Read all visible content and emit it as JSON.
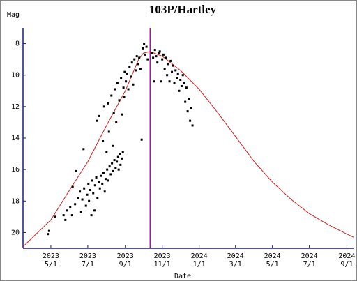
{
  "chart_data": {
    "type": "scatter",
    "title": "103P/Hartley",
    "y_label": "Mag",
    "x_label": "Date",
    "axis_color": "#1a1a8c",
    "xlim": [
      "2023-03-16",
      "2024-09-12"
    ],
    "ylim": [
      21,
      7
    ],
    "yticks": [
      8,
      10,
      12,
      14,
      16,
      18,
      20
    ],
    "xticks": [
      {
        "value": "2023-05-01",
        "label": "2023 5/1"
      },
      {
        "value": "2023-07-01",
        "label": "2023 7/1"
      },
      {
        "value": "2023-09-01",
        "label": "2023 9/1"
      },
      {
        "value": "2023-11-01",
        "label": "2023 11/1"
      },
      {
        "value": "2024-01-01",
        "label": "2024 1/1"
      },
      {
        "value": "2024-03-01",
        "label": "2024 3/1"
      },
      {
        "value": "2024-05-01",
        "label": "2024 5/1"
      },
      {
        "value": "2024-07-01",
        "label": "2024 7/1"
      },
      {
        "value": "2024-09-01",
        "label": "2024 9/1"
      }
    ],
    "vlines": [
      {
        "x": "2023-10-12",
        "color": "#c000c0"
      }
    ],
    "series": [
      {
        "mark": "line",
        "color": "#d02020",
        "x": [
          "2023-03-16",
          "2023-05-01",
          "2023-06-01",
          "2023-07-01",
          "2023-08-01",
          "2023-09-01",
          "2023-09-23",
          "2023-10-01",
          "2023-10-12",
          "2023-11-01",
          "2023-12-01",
          "2024-01-01",
          "2024-02-01",
          "2024-03-01",
          "2024-04-01",
          "2024-05-01",
          "2024-06-01",
          "2024-07-01",
          "2024-08-01",
          "2024-09-01",
          "2024-09-12"
        ],
        "values": [
          20.9,
          19.2,
          17.3,
          15.5,
          13.2,
          11.0,
          9.0,
          8.6,
          8.5,
          8.8,
          9.7,
          10.9,
          12.4,
          13.9,
          15.5,
          16.8,
          17.9,
          18.8,
          19.5,
          20.1,
          20.3
        ]
      },
      {
        "mark": "dot",
        "color": "#000000",
        "x": [
          "2023-04-26",
          "2023-04-28",
          "2023-05-08",
          "2023-05-22",
          "2023-05-25",
          "2023-05-28",
          "2023-06-02",
          "2023-06-05",
          "2023-06-06",
          "2023-06-10",
          "2023-06-12",
          "2023-06-15",
          "2023-06-18",
          "2023-06-20",
          "2023-06-22",
          "2023-06-24",
          "2023-06-25",
          "2023-06-28",
          "2023-06-30",
          "2023-07-02",
          "2023-07-03",
          "2023-07-05",
          "2023-07-07",
          "2023-07-08",
          "2023-07-10",
          "2023-07-12",
          "2023-07-13",
          "2023-07-15",
          "2023-07-16",
          "2023-07-17",
          "2023-07-19",
          "2023-07-20",
          "2023-07-21",
          "2023-07-23",
          "2023-07-25",
          "2023-07-26",
          "2023-07-27",
          "2023-07-28",
          "2023-07-29",
          "2023-07-31",
          "2023-08-01",
          "2023-08-02",
          "2023-08-03",
          "2023-08-04",
          "2023-08-05",
          "2023-08-06",
          "2023-08-08",
          "2023-08-09",
          "2023-08-10",
          "2023-08-11",
          "2023-08-12",
          "2023-08-13",
          "2023-08-14",
          "2023-08-15",
          "2023-08-16",
          "2023-08-17",
          "2023-08-18",
          "2023-08-19",
          "2023-08-20",
          "2023-08-21",
          "2023-08-22",
          "2023-08-23",
          "2023-08-24",
          "2023-08-25",
          "2023-08-26",
          "2023-08-27",
          "2023-08-28",
          "2023-08-29",
          "2023-08-30",
          "2023-08-31",
          "2023-09-02",
          "2023-09-04",
          "2023-09-06",
          "2023-09-08",
          "2023-09-10",
          "2023-09-12",
          "2023-09-14",
          "2023-09-16",
          "2023-09-18",
          "2023-09-20",
          "2023-09-22",
          "2023-09-24",
          "2023-09-26",
          "2023-09-28",
          "2023-09-30",
          "2023-10-02",
          "2023-10-04",
          "2023-10-06",
          "2023-10-08",
          "2023-10-15",
          "2023-10-17",
          "2023-10-19",
          "2023-10-20",
          "2023-10-22",
          "2023-10-24",
          "2023-10-26",
          "2023-10-28",
          "2023-10-30",
          "2023-11-01",
          "2023-11-03",
          "2023-11-05",
          "2023-11-07",
          "2023-11-09",
          "2023-11-11",
          "2023-11-13",
          "2023-11-15",
          "2023-11-17",
          "2023-11-19",
          "2023-11-21",
          "2023-11-23",
          "2023-11-25",
          "2023-11-27",
          "2023-11-29",
          "2023-12-01",
          "2023-12-03",
          "2023-12-05",
          "2023-12-07",
          "2023-12-09",
          "2023-12-11",
          "2023-12-13",
          "2023-12-15",
          "2023-12-17",
          "2023-12-19",
          "2023-12-21"
        ],
        "values": [
          20.1,
          19.9,
          19.0,
          18.9,
          19.2,
          18.6,
          18.4,
          18.9,
          17.1,
          18.2,
          16.1,
          17.8,
          17.4,
          18.7,
          17.9,
          14.7,
          17.2,
          18.3,
          17.6,
          16.9,
          18.0,
          17.3,
          18.9,
          16.7,
          17.5,
          18.6,
          17.0,
          16.5,
          12.9,
          17.8,
          16.8,
          12.6,
          17.2,
          16.4,
          16.9,
          14.2,
          16.2,
          12.0,
          17.4,
          16.6,
          14.9,
          16.0,
          11.8,
          16.7,
          13.6,
          15.8,
          16.3,
          11.3,
          15.6,
          14.5,
          16.1,
          12.4,
          15.4,
          10.9,
          15.9,
          13.0,
          15.5,
          10.5,
          15.2,
          16.0,
          11.6,
          15.0,
          15.7,
          10.2,
          15.3,
          12.5,
          14.9,
          10.8,
          11.4,
          9.8,
          10.4,
          9.9,
          10.9,
          9.5,
          10.1,
          9.2,
          10.6,
          9.0,
          9.7,
          8.8,
          9.3,
          8.9,
          9.6,
          14.1,
          8.3,
          8.0,
          8.7,
          8.2,
          9.0,
          8.6,
          8.9,
          10.4,
          8.4,
          8.8,
          9.2,
          8.6,
          8.5,
          10.4,
          9.0,
          8.7,
          9.6,
          8.9,
          10.0,
          9.3,
          10.4,
          9.1,
          9.8,
          9.4,
          10.5,
          9.7,
          10.2,
          9.9,
          11.0,
          10.3,
          10.7,
          10.0,
          10.5,
          11.7,
          10.8,
          12.3,
          11.5,
          12.9,
          12.1,
          13.2
        ]
      }
    ]
  }
}
